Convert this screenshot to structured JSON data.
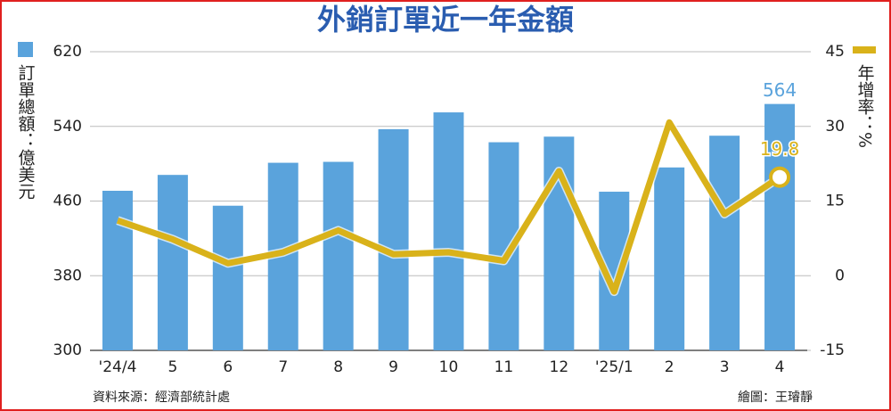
{
  "chart_data": {
    "type": "bar-line",
    "title": "外銷訂單近一年金額",
    "categories": [
      "'24/4",
      "5",
      "6",
      "7",
      "8",
      "9",
      "10",
      "11",
      "12",
      "'25/1",
      "2",
      "3",
      "4"
    ],
    "series": [
      {
        "name": "訂單總額：億美元",
        "type": "bar",
        "color": "#5aa3dc",
        "values": [
          471,
          488,
          455,
          501,
          502,
          537,
          555,
          523,
          529,
          470,
          496,
          530,
          564
        ],
        "value_labels": [
          null,
          null,
          null,
          null,
          null,
          null,
          null,
          null,
          null,
          null,
          null,
          null,
          "564"
        ]
      },
      {
        "name": "年增率：%",
        "type": "line",
        "axis": "y2",
        "color": "#d9b21a",
        "values": [
          11.1,
          7.3,
          2.5,
          4.7,
          9.1,
          4.3,
          4.7,
          3.0,
          21.0,
          -3.2,
          30.8,
          12.4,
          19.8
        ],
        "value_labels": [
          null,
          null,
          null,
          null,
          null,
          null,
          null,
          null,
          null,
          null,
          null,
          null,
          "19.8"
        ]
      }
    ],
    "ylim": [
      300,
      620
    ],
    "yticks": [
      300,
      380,
      460,
      540,
      620
    ],
    "y2lim": [
      -15,
      45
    ],
    "y2ticks": [
      -15,
      0,
      15,
      30,
      45
    ],
    "grid": true,
    "source": "資料來源：經濟部統計處",
    "credit": "繪圖：王璿靜"
  }
}
